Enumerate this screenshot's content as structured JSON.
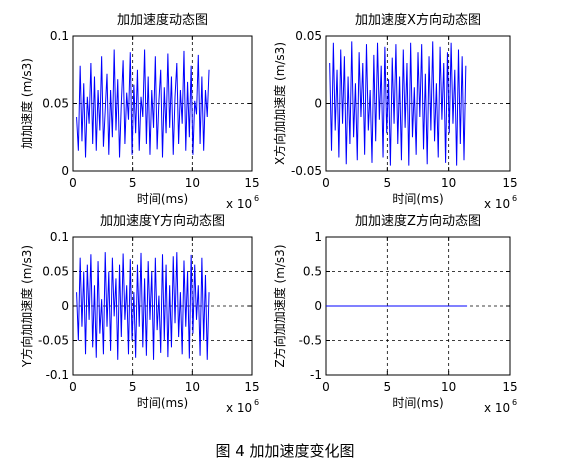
{
  "figure_caption": "图 4  加加速度变化图",
  "chart_data": [
    {
      "type": "line",
      "title": "加加速度动态图",
      "xlabel": "时间(ms)",
      "ylabel": "加加速度 (m/s3)",
      "xlim": [
        0,
        15
      ],
      "ylim": [
        0,
        0.1
      ],
      "x_ticks": [
        "0",
        "5",
        "10",
        "15"
      ],
      "y_ticks": [
        "0",
        "0.05",
        "0.1"
      ],
      "x_exponent_label": "x 10",
      "x_exponent": "6",
      "grid": "dashed",
      "line_color": "#0000ff",
      "series": [
        {
          "x": [
            0.3,
            0.45,
            0.6,
            0.75,
            0.9,
            1.05,
            1.2,
            1.35,
            1.5,
            1.65,
            1.8,
            1.95,
            2.1,
            2.25,
            2.4,
            2.55,
            2.7,
            2.85,
            3.0,
            3.15,
            3.3,
            3.45,
            3.6,
            3.75,
            3.9,
            4.05,
            4.2,
            4.35,
            4.5,
            4.65,
            4.8,
            4.95,
            5.1,
            5.25,
            5.4,
            5.55,
            5.7,
            5.85,
            6.0,
            6.15,
            6.3,
            6.45,
            6.6,
            6.75,
            6.9,
            7.05,
            7.2,
            7.35,
            7.5,
            7.65,
            7.8,
            7.95,
            8.1,
            8.25,
            8.4,
            8.55,
            8.7,
            8.85,
            9.0,
            9.15,
            9.3,
            9.45,
            9.6,
            9.75,
            9.9,
            10.05,
            10.2,
            10.35,
            10.5,
            10.65,
            10.8,
            10.95,
            11.1,
            11.25,
            11.4
          ],
          "y": [
            0.04,
            0.015,
            0.078,
            0.022,
            0.065,
            0.01,
            0.055,
            0.035,
            0.08,
            0.02,
            0.07,
            0.015,
            0.06,
            0.03,
            0.085,
            0.018,
            0.045,
            0.072,
            0.012,
            0.06,
            0.025,
            0.09,
            0.03,
            0.068,
            0.01,
            0.05,
            0.082,
            0.02,
            0.058,
            0.038,
            0.088,
            0.012,
            0.064,
            0.028,
            0.075,
            0.015,
            0.055,
            0.04,
            0.09,
            0.02,
            0.07,
            0.012,
            0.06,
            0.032,
            0.085,
            0.016,
            0.052,
            0.075,
            0.01,
            0.062,
            0.028,
            0.087,
            0.032,
            0.07,
            0.012,
            0.055,
            0.08,
            0.02,
            0.06,
            0.035,
            0.089,
            0.015,
            0.066,
            0.025,
            0.078,
            0.012,
            0.052,
            0.042,
            0.086,
            0.02,
            0.07,
            0.015,
            0.06,
            0.04,
            0.075
          ]
        }
      ]
    },
    {
      "type": "line",
      "title": "加加速度X方向动态图",
      "xlabel": "时间(ms)",
      "ylabel": "X方向加加速度 (m/s3)",
      "xlim": [
        0,
        15
      ],
      "ylim": [
        -0.05,
        0.05
      ],
      "x_ticks": [
        "0",
        "5",
        "10",
        "15"
      ],
      "y_ticks": [
        "-0.05",
        "0",
        "0.05"
      ],
      "x_exponent_label": "x 10",
      "x_exponent": "6",
      "grid": "dashed",
      "line_color": "#0000ff",
      "series": [
        {
          "x": [
            0.3,
            0.45,
            0.6,
            0.75,
            0.9,
            1.05,
            1.2,
            1.35,
            1.5,
            1.65,
            1.8,
            1.95,
            2.1,
            2.25,
            2.4,
            2.55,
            2.7,
            2.85,
            3.0,
            3.15,
            3.3,
            3.45,
            3.6,
            3.75,
            3.9,
            4.05,
            4.2,
            4.35,
            4.5,
            4.65,
            4.8,
            4.95,
            5.1,
            5.25,
            5.4,
            5.55,
            5.7,
            5.85,
            6.0,
            6.15,
            6.3,
            6.45,
            6.6,
            6.75,
            6.9,
            7.05,
            7.2,
            7.35,
            7.5,
            7.65,
            7.8,
            7.95,
            8.1,
            8.25,
            8.4,
            8.55,
            8.7,
            8.85,
            9.0,
            9.15,
            9.3,
            9.45,
            9.6,
            9.75,
            9.9,
            10.05,
            10.2,
            10.35,
            10.5,
            10.65,
            10.8,
            10.95,
            11.1,
            11.25,
            11.4
          ],
          "y": [
            0.03,
            -0.035,
            0.045,
            -0.02,
            0.025,
            -0.04,
            0.04,
            -0.015,
            0.035,
            -0.045,
            0.02,
            -0.03,
            0.046,
            -0.025,
            0.015,
            -0.042,
            0.038,
            -0.01,
            0.03,
            -0.038,
            0.044,
            -0.02,
            0.01,
            -0.044,
            0.036,
            -0.028,
            0.045,
            -0.012,
            0.028,
            -0.04,
            0.042,
            -0.022,
            0.018,
            -0.046,
            0.034,
            -0.015,
            0.044,
            -0.03,
            0.02,
            -0.042,
            0.04,
            -0.018,
            0.03,
            -0.046,
            0.045,
            -0.025,
            0.012,
            -0.038,
            0.038,
            -0.01,
            0.044,
            -0.034,
            0.022,
            -0.045,
            0.035,
            -0.02,
            0.046,
            -0.028,
            0.015,
            -0.04,
            0.042,
            -0.012,
            0.03,
            -0.044,
            0.038,
            -0.022,
            0.045,
            -0.015,
            0.025,
            -0.046,
            0.04,
            -0.03,
            0.035,
            -0.042,
            0.028
          ]
        }
      ]
    },
    {
      "type": "line",
      "title": "加加速度Y方向动态图",
      "xlabel": "时间(ms)",
      "ylabel": "Y方向加加速度 (m/s3)",
      "xlim": [
        0,
        15
      ],
      "ylim": [
        -0.1,
        0.1
      ],
      "x_ticks": [
        "0",
        "5",
        "10",
        "15"
      ],
      "y_ticks": [
        "-0.1",
        "-0.05",
        "0",
        "0.05",
        "0.1"
      ],
      "x_exponent_label": "x 10",
      "x_exponent": "6",
      "grid": "dashed",
      "line_color": "#0000ff",
      "series": [
        {
          "x": [
            0.3,
            0.45,
            0.6,
            0.75,
            0.9,
            1.05,
            1.2,
            1.35,
            1.5,
            1.65,
            1.8,
            1.95,
            2.1,
            2.25,
            2.4,
            2.55,
            2.7,
            2.85,
            3.0,
            3.15,
            3.3,
            3.45,
            3.6,
            3.75,
            3.9,
            4.05,
            4.2,
            4.35,
            4.5,
            4.65,
            4.8,
            4.95,
            5.1,
            5.25,
            5.4,
            5.55,
            5.7,
            5.85,
            6.0,
            6.15,
            6.3,
            6.45,
            6.6,
            6.75,
            6.9,
            7.05,
            7.2,
            7.35,
            7.5,
            7.65,
            7.8,
            7.95,
            8.1,
            8.25,
            8.4,
            8.55,
            8.7,
            8.85,
            9.0,
            9.15,
            9.3,
            9.45,
            9.6,
            9.75,
            9.9,
            10.05,
            10.2,
            10.35,
            10.5,
            10.65,
            10.8,
            10.95,
            11.1,
            11.25,
            11.4
          ],
          "y": [
            0.02,
            -0.05,
            0.07,
            -0.03,
            0.05,
            -0.07,
            0.06,
            -0.02,
            0.075,
            -0.06,
            0.03,
            -0.075,
            0.065,
            -0.04,
            0.01,
            -0.07,
            0.078,
            -0.03,
            0.05,
            -0.065,
            0.07,
            -0.015,
            0.04,
            -0.078,
            0.06,
            -0.045,
            0.076,
            -0.02,
            0.03,
            -0.07,
            0.068,
            -0.05,
            0.02,
            -0.075,
            0.06,
            -0.03,
            0.077,
            -0.06,
            0.04,
            -0.072,
            0.065,
            -0.02,
            0.05,
            -0.078,
            0.07,
            -0.035,
            0.015,
            -0.068,
            0.075,
            -0.05,
            0.06,
            -0.074,
            0.03,
            -0.06,
            0.072,
            -0.025,
            0.078,
            -0.045,
            0.02,
            -0.07,
            0.066,
            -0.03,
            0.05,
            -0.076,
            0.074,
            -0.04,
            0.06,
            -0.02,
            0.03,
            -0.072,
            0.07,
            -0.05,
            0.045,
            -0.078,
            0.02
          ]
        }
      ]
    },
    {
      "type": "line",
      "title": "加加速度Z方向动态图",
      "xlabel": "时间(ms)",
      "ylabel": "Z方向加加速度 (m/s3)",
      "xlim": [
        0,
        15
      ],
      "ylim": [
        -1,
        1
      ],
      "x_ticks": [
        "0",
        "5",
        "10",
        "15"
      ],
      "y_ticks": [
        "-1",
        "-0.5",
        "0",
        "0.5",
        "1"
      ],
      "x_exponent_label": "x 10",
      "x_exponent": "6",
      "grid": "dashed",
      "line_color": "#0000ff",
      "series": [
        {
          "x": [
            0,
            11.5
          ],
          "y": [
            0,
            0
          ]
        }
      ]
    }
  ]
}
